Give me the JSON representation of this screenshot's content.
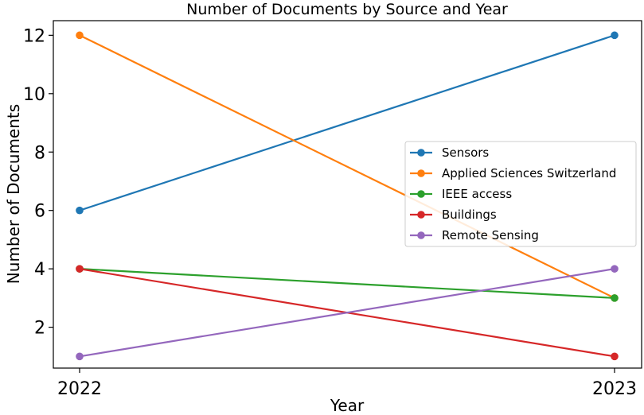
{
  "chart_data": {
    "type": "line",
    "title": "Number of Documents by Source and Year",
    "xlabel": "Year",
    "ylabel": "Number of Documents",
    "categories": [
      "2022",
      "2023"
    ],
    "ylim": [
      0.6,
      12.5
    ],
    "y_ticks": [
      2,
      4,
      6,
      8,
      10,
      12
    ],
    "grid": false,
    "legend_position": "center-right",
    "series": [
      {
        "name": "Sensors",
        "color": "#1f77b4",
        "values": [
          6,
          12
        ]
      },
      {
        "name": "Applied Sciences Switzerland",
        "color": "#ff7f0e",
        "values": [
          12,
          3
        ]
      },
      {
        "name": "IEEE access",
        "color": "#2ca02c",
        "values": [
          4,
          3
        ]
      },
      {
        "name": "Buildings",
        "color": "#d62728",
        "values": [
          4,
          1
        ]
      },
      {
        "name": "Remote Sensing",
        "color": "#9467bd",
        "values": [
          1,
          4
        ]
      }
    ]
  }
}
